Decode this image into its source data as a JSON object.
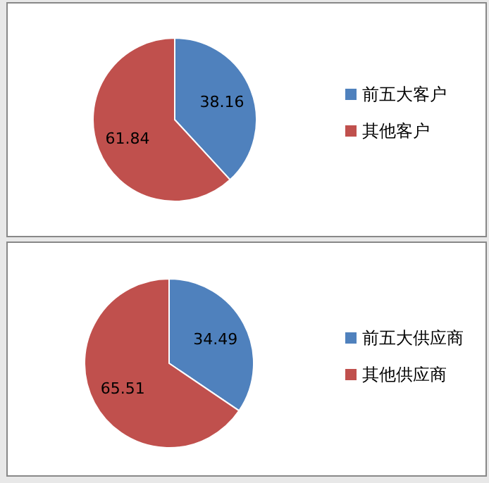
{
  "chart_data": [
    {
      "type": "pie",
      "categories": [
        "前五大客户",
        "其他客户"
      ],
      "values": [
        38.16,
        61.84
      ],
      "colors": [
        "#4f81bd",
        "#c0504d"
      ],
      "data_labels": true,
      "legend": "right"
    },
    {
      "type": "pie",
      "categories": [
        "前五大供应商",
        "其他供应商"
      ],
      "values": [
        34.49,
        65.51
      ],
      "colors": [
        "#4f81bd",
        "#c0504d"
      ],
      "data_labels": true,
      "legend": "right"
    }
  ]
}
